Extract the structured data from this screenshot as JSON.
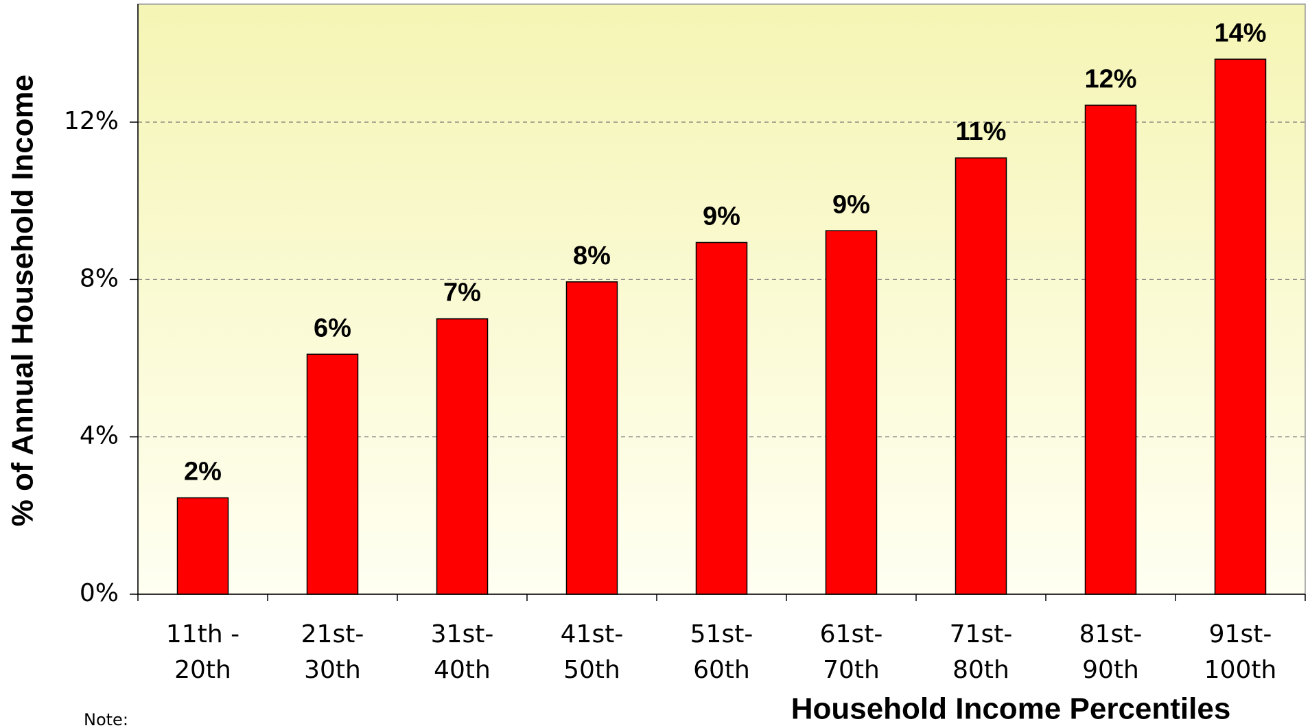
{
  "chart_data": {
    "type": "bar",
    "categories": [
      "11th -\n20th",
      "21st-\n30th",
      "31st-\n40th",
      "41st-\n50th",
      "51st-\n60th",
      "61st-\n70th",
      "71st-\n80th",
      "81st-\n90th",
      "91st-\n100th"
    ],
    "values": [
      2.45,
      6.1,
      7.0,
      7.94,
      8.94,
      9.24,
      11.09,
      12.43,
      13.6
    ],
    "value_labels": [
      "2%",
      "6%",
      "7%",
      "8%",
      "9%",
      "9%",
      "11%",
      "12%",
      "14%"
    ],
    "color": "#ff0000",
    "ylim": [
      0,
      15
    ],
    "yticks": [
      {
        "value": 0,
        "label": "0%"
      },
      {
        "value": 4,
        "label": "4%"
      },
      {
        "value": 8,
        "label": "8%"
      },
      {
        "value": 12,
        "label": "12%"
      }
    ],
    "grid": true,
    "y_label": "% of Annual Household Income",
    "x_label": "Household Income Percentiles",
    "note": "Note:"
  }
}
